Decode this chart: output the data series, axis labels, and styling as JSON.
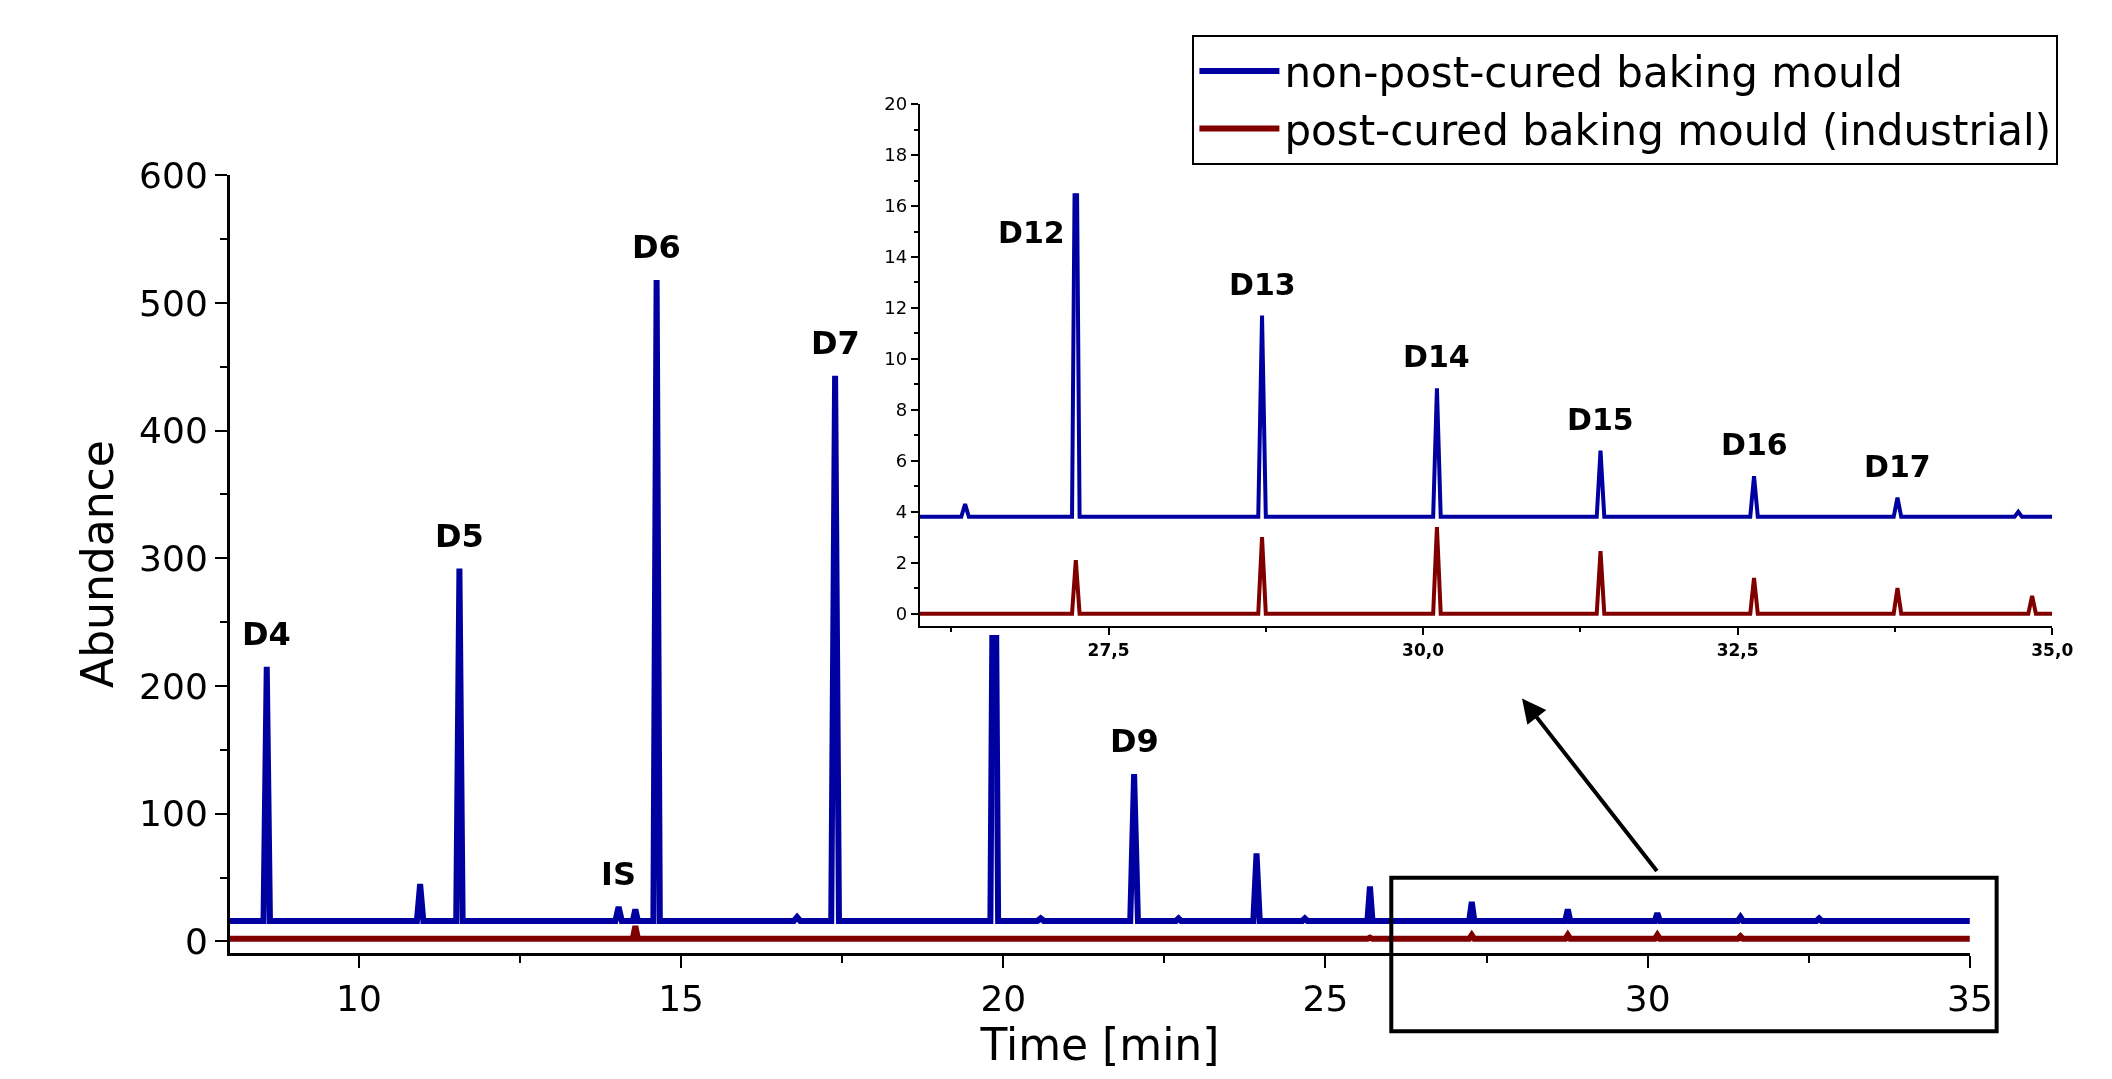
{
  "chart_data": [
    {
      "type": "line",
      "xlabel": "Time [min]",
      "ylabel": "Abundance",
      "xlim": [
        8,
        35
      ],
      "ylim": [
        -9,
        600
      ],
      "xticks": [
        10,
        {
          "value": 12.5,
          "label": null
        },
        15,
        {
          "value": 17.5,
          "label": null
        },
        20,
        {
          "value": 22.5,
          "label": null
        },
        25,
        {
          "value": 27.5,
          "label": null
        },
        30,
        {
          "value": 32.5,
          "label": null
        },
        35
      ],
      "yticks": [
        0,
        {
          "value": 50,
          "label": null
        },
        100,
        {
          "value": 150,
          "label": null
        },
        200,
        {
          "value": 250,
          "label": null
        },
        300,
        {
          "value": 350,
          "label": null
        },
        400,
        {
          "value": 450,
          "label": null
        },
        500,
        {
          "value": 550,
          "label": null
        },
        600
      ],
      "line_style": "solid",
      "marker": "none",
      "series": [
        {
          "name": "non-post-cured baking mould",
          "color": "#0000a0",
          "x": [
            8,
            8.52,
            8.57,
            8.62,
            10.9,
            10.95,
            11.0,
            11.51,
            11.56,
            11.61,
            13.98,
            14.03,
            14.08,
            14.25,
            14.29,
            14.33,
            14.57,
            14.62,
            14.67,
            16.75,
            16.8,
            16.85,
            17.33,
            17.39,
            17.45,
            19.8,
            19.83,
            19.86,
            19.89,
            19.92,
            20.53,
            20.58,
            20.63,
            21.97,
            22.03,
            22.09,
            22.68,
            22.72,
            22.76,
            23.88,
            23.93,
            23.98,
            24.64,
            24.68,
            24.72,
            25.65,
            25.69,
            25.73,
            27.23,
            27.27,
            27.31,
            28.72,
            28.76,
            28.8,
            30.11,
            30.15,
            30.19,
            31.4,
            31.44,
            31.48,
            32.62,
            32.66,
            32.7,
            35
          ],
          "values": [
            16,
            16,
            215,
            16,
            16,
            45,
            16,
            16,
            292,
            16,
            16,
            27,
            16,
            16,
            25,
            16,
            16,
            518,
            16,
            16,
            19,
            16,
            16,
            443,
            16,
            16,
            240,
            null,
            240,
            16,
            16,
            18,
            16,
            16,
            131,
            16,
            16,
            18,
            16,
            16,
            69,
            16,
            16,
            18,
            16,
            16,
            43,
            16,
            16,
            31,
            16,
            16,
            25,
            16,
            16,
            22,
            16,
            16,
            19,
            16,
            16,
            18,
            16,
            16
          ]
        },
        {
          "name": "post-cured baking mould (industrial)",
          "color": "#800000",
          "x": [
            8,
            14.25,
            14.29,
            14.33,
            25.65,
            25.69,
            25.73,
            27.23,
            27.27,
            27.31,
            28.72,
            28.76,
            28.8,
            30.11,
            30.15,
            30.19,
            31.4,
            31.44,
            31.48,
            35
          ],
          "values": [
            2,
            2,
            12,
            2,
            2,
            3,
            2,
            2,
            5,
            2,
            2,
            5,
            2,
            2,
            5,
            2,
            2,
            4,
            2,
            2
          ]
        }
      ],
      "legend": "top right",
      "annotations": [
        {
          "text": "D4",
          "x": 8.57,
          "y": 215
        },
        {
          "text": "D5",
          "x": 11.56,
          "y": 292
        },
        {
          "text": "IS",
          "x": 14.03,
          "y": 27
        },
        {
          "text": "D6",
          "x": 14.62,
          "y": 518
        },
        {
          "text": "D7",
          "x": 17.39,
          "y": 443
        },
        {
          "text": "D9",
          "x": 22.03,
          "y": 131
        }
      ]
    },
    {
      "type": "line",
      "xlim": [
        26,
        35
      ],
      "ylim": [
        -0.5,
        20
      ],
      "xticks": [
        {
          "value": 26.25,
          "label": null
        },
        {
          "value": 27.5,
          "label": "27,5"
        },
        {
          "value": 28.75,
          "label": null
        },
        {
          "value": 30,
          "label": "30,0"
        },
        {
          "value": 31.25,
          "label": null
        },
        {
          "value": 32.5,
          "label": "32,5"
        },
        {
          "value": 33.75,
          "label": null
        },
        {
          "value": 35,
          "label": "35,0"
        }
      ],
      "yticks": [
        0,
        {
          "value": 1,
          "label": null
        },
        2,
        {
          "value": 3,
          "label": null
        },
        4,
        {
          "value": 5,
          "label": null
        },
        6,
        {
          "value": 7,
          "label": null
        },
        8,
        {
          "value": 9,
          "label": null
        },
        10,
        {
          "value": 11,
          "label": null
        },
        12,
        {
          "value": 13,
          "label": null
        },
        14,
        {
          "value": 15,
          "label": null
        },
        16,
        {
          "value": 17,
          "label": null
        },
        18,
        {
          "value": 19,
          "label": null
        },
        20
      ],
      "legend": "top right",
      "line_style": "solid",
      "marker": "none",
      "series": [
        {
          "name": "non-post-cured baking mould",
          "color": "#0000a0",
          "x": [
            26,
            26.33,
            26.36,
            26.39,
            27.21,
            27.23,
            27.24,
            27.25,
            27.27,
            28.69,
            28.72,
            28.75,
            30.08,
            30.11,
            30.14,
            31.38,
            31.41,
            31.44,
            32.6,
            32.63,
            32.66,
            33.74,
            33.77,
            33.8,
            34.7,
            34.73,
            34.76,
            35
          ],
          "values": [
            3.8,
            3.8,
            4.3,
            3.8,
            3.8,
            16.5,
            null,
            16.5,
            3.8,
            3.8,
            11.7,
            3.8,
            3.8,
            8.85,
            3.8,
            3.8,
            6.4,
            3.8,
            3.8,
            5.4,
            3.8,
            3.8,
            4.55,
            3.8,
            3.8,
            4.0,
            3.8,
            3.8
          ]
        },
        {
          "name": "post-cured baking mould (industrial)",
          "color": "#800000",
          "x": [
            26,
            27.21,
            27.24,
            27.27,
            28.69,
            28.72,
            28.75,
            30.08,
            30.11,
            30.14,
            31.38,
            31.41,
            31.44,
            32.6,
            32.63,
            32.66,
            33.74,
            33.77,
            33.8,
            34.81,
            34.84,
            34.87,
            35
          ],
          "values": [
            0,
            0,
            2.1,
            0,
            0,
            3.0,
            0,
            0,
            3.4,
            0,
            0,
            2.45,
            0,
            0,
            1.4,
            0,
            0,
            1.0,
            0,
            0,
            0.7,
            0,
            0
          ]
        }
      ],
      "annotations": [
        {
          "text": "D12",
          "x": 27.23,
          "y": 16.5
        },
        {
          "text": "D13",
          "x": 28.72,
          "y": 11.7
        },
        {
          "text": "D14",
          "x": 30.11,
          "y": 8.85
        },
        {
          "text": "D15",
          "x": 31.41,
          "y": 6.4
        },
        {
          "text": "D16",
          "x": 32.63,
          "y": 5.4
        },
        {
          "text": "D17",
          "x": 33.77,
          "y": 4.55
        }
      ]
    }
  ]
}
